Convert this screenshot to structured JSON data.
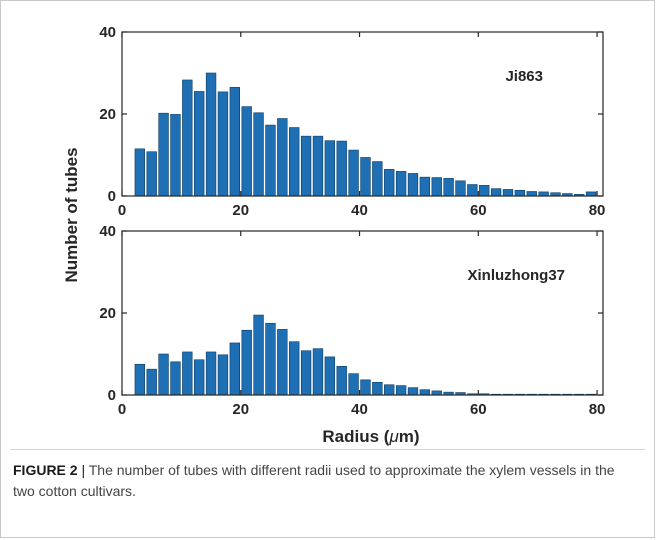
{
  "figure": {
    "ylabel": "Number of tubes",
    "xlabel": "Radius (",
    "xlabel_unit_mu": "μ",
    "xlabel_suffix": "m)",
    "caption_label": "FIGURE 2",
    "caption_sep": " | ",
    "caption_text": "The number of tubes with different radii used to approximate the xylem vessels in the two cotton cultivars."
  },
  "colors": {
    "bar": "#1f6fb4",
    "bar_edge": "#0b3d66",
    "axis": "#262626"
  },
  "chart_data": [
    {
      "type": "bar",
      "title": "Ji863",
      "xlim": [
        0,
        81
      ],
      "ylim": [
        0,
        40
      ],
      "xticks": [
        0,
        20,
        40,
        60,
        80
      ],
      "yticks": [
        0,
        20,
        40
      ],
      "x": [
        3,
        5,
        7,
        9,
        11,
        13,
        15,
        17,
        19,
        21,
        23,
        25,
        27,
        29,
        31,
        33,
        35,
        37,
        39,
        41,
        43,
        45,
        47,
        49,
        51,
        53,
        55,
        57,
        59,
        61,
        63,
        65,
        67,
        69,
        71,
        73,
        75,
        77,
        79
      ],
      "values": [
        11.5,
        10.8,
        20.2,
        19.9,
        28.3,
        25.5,
        30.0,
        25.4,
        26.5,
        21.8,
        20.3,
        17.3,
        18.9,
        16.7,
        14.6,
        14.6,
        13.5,
        13.4,
        11.2,
        9.4,
        8.4,
        6.5,
        6.0,
        5.5,
        4.6,
        4.5,
        4.3,
        3.7,
        2.8,
        2.6,
        1.8,
        1.6,
        1.4,
        1.1,
        1.0,
        0.8,
        0.6,
        0.4,
        1.0
      ]
    },
    {
      "type": "bar",
      "title": "Xinluzhong37",
      "xlim": [
        0,
        81
      ],
      "ylim": [
        0,
        40
      ],
      "xticks": [
        0,
        20,
        40,
        60,
        80
      ],
      "yticks": [
        0,
        20,
        40
      ],
      "x": [
        3,
        5,
        7,
        9,
        11,
        13,
        15,
        17,
        19,
        21,
        23,
        25,
        27,
        29,
        31,
        33,
        35,
        37,
        39,
        41,
        43,
        45,
        47,
        49,
        51,
        53,
        55,
        57,
        59,
        61,
        63,
        65,
        67,
        69,
        71,
        73,
        75,
        77,
        79
      ],
      "values": [
        7.5,
        6.3,
        10.0,
        8.1,
        10.5,
        8.6,
        10.5,
        9.8,
        12.7,
        15.8,
        19.5,
        17.5,
        16.0,
        13.0,
        10.8,
        11.3,
        9.3,
        7.0,
        5.2,
        3.7,
        3.1,
        2.5,
        2.3,
        1.8,
        1.3,
        1.0,
        0.7,
        0.6,
        0.3,
        0.3,
        0.2,
        0.2,
        0.2,
        0.2,
        0.2,
        0.2,
        0.2,
        0.2,
        0.2
      ]
    }
  ]
}
